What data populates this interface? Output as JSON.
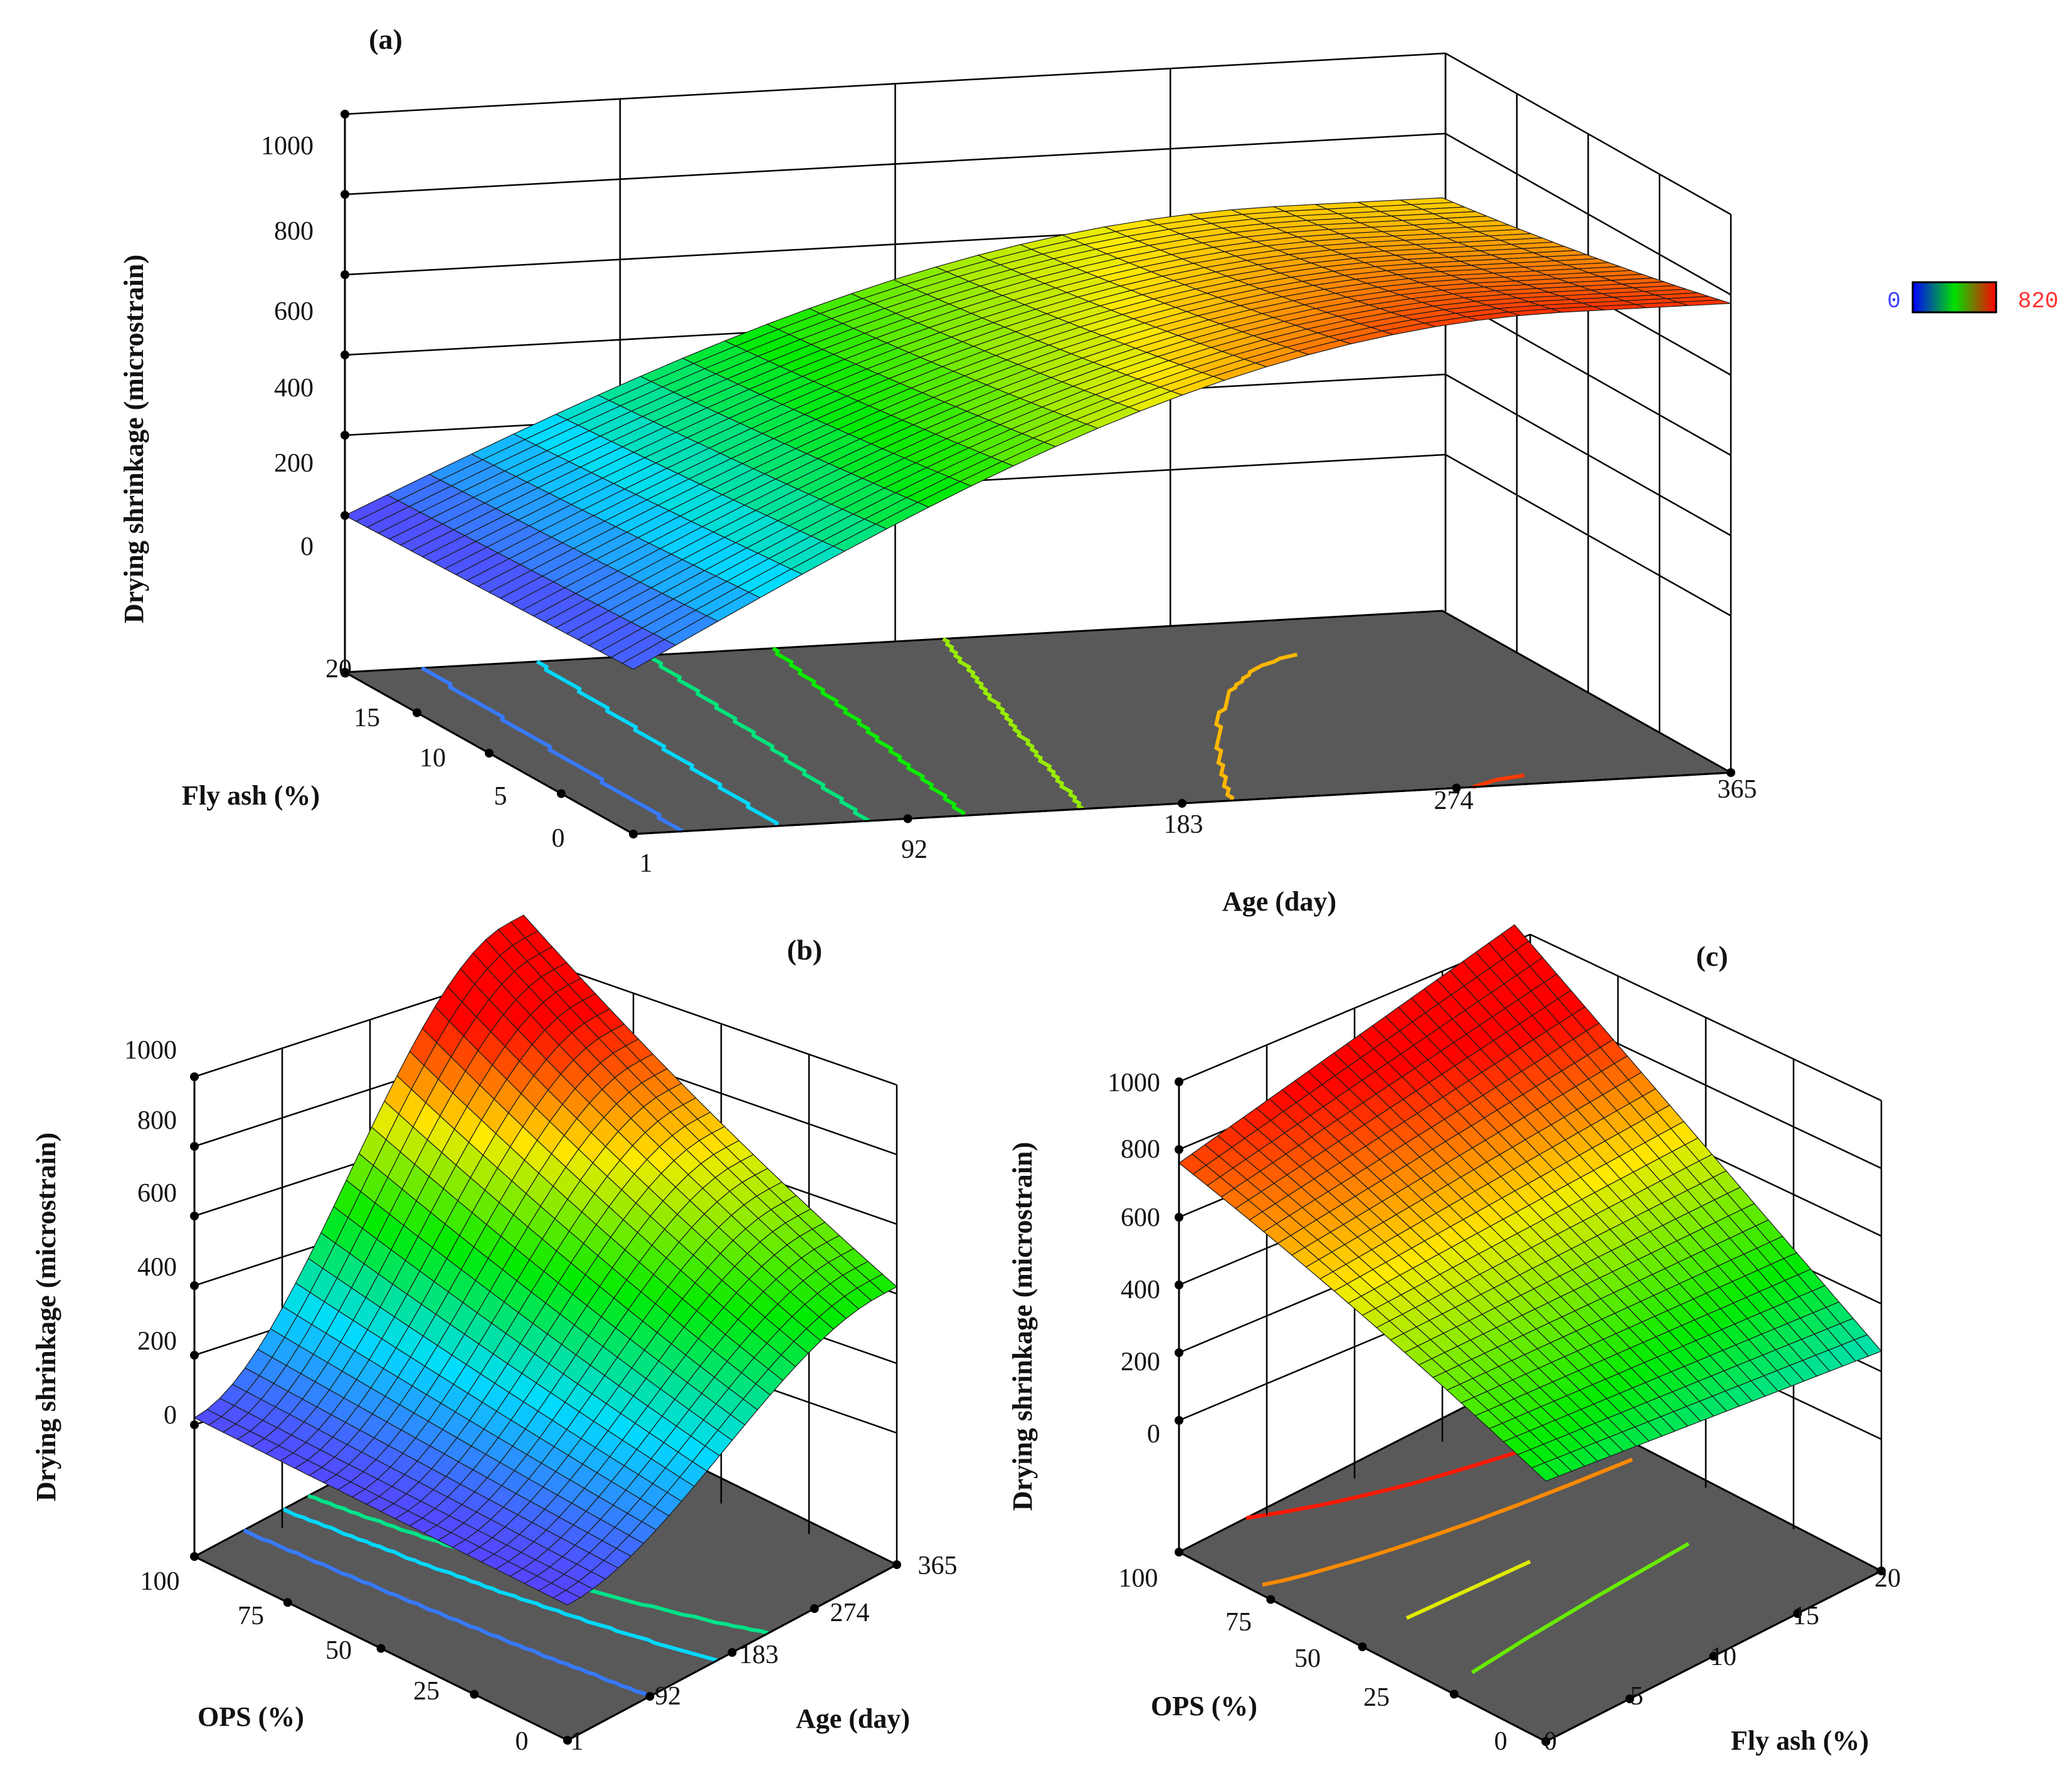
{
  "chart_data": [
    {
      "type": "surface3d",
      "panel": "(a)",
      "zlabel": "Drying shrinkage (microstrain)",
      "xlabel": "Age (day)",
      "ylabel": "Fly ash (%)",
      "zticks": [
        "0",
        "200",
        "400",
        "600",
        "800",
        "1000"
      ],
      "xticks": [
        "1",
        "92",
        "183",
        "274",
        "365"
      ],
      "yticks": [
        "0",
        "5",
        "10",
        "15",
        "20"
      ],
      "zlim": [
        0,
        1000
      ],
      "corner_values": {
        "age_1_fly_0": 20,
        "age_1_fly_20": 0,
        "age_365_fly_0": 800,
        "age_365_fly_20": 620
      },
      "peak": {
        "age": 300,
        "fly_ash": 20,
        "shrinkage": 820
      }
    },
    {
      "type": "surface3d",
      "panel": "(b)",
      "zlabel": "Drying shrinkage (microstrain)",
      "xlabel": "Age (day)",
      "ylabel": "OPS (%)",
      "zticks": [
        "0",
        "200",
        "400",
        "600",
        "800",
        "1000"
      ],
      "xticks": [
        "1",
        "92",
        "183",
        "274",
        "365"
      ],
      "yticks": [
        "0",
        "25",
        "50",
        "75",
        "100"
      ],
      "zlim": [
        0,
        1000
      ],
      "corner_values": {
        "age_1_ops_0": 10,
        "age_1_ops_100": 20,
        "age_365_ops_0": 420,
        "age_365_ops_100": 960
      }
    },
    {
      "type": "surface3d",
      "panel": "(c)",
      "zlabel": "Drying shrinkage (microstrain)",
      "xlabel": "Fly ash (%)",
      "ylabel": "OPS (%)",
      "zticks": [
        "0",
        "200",
        "400",
        "600",
        "800",
        "1000"
      ],
      "xticks": [
        "0",
        "5",
        "10",
        "15",
        "20"
      ],
      "yticks": [
        "0",
        "25",
        "50",
        "75",
        "100"
      ],
      "zlim": [
        0,
        1000
      ],
      "corner_values": {
        "fly_0_ops_0": 380,
        "fly_0_ops_100": 760,
        "fly_20_ops_0": 260,
        "fly_20_ops_100": 960
      }
    }
  ],
  "legend": {
    "min_label": "0",
    "max_label": "820",
    "min_value": 0,
    "max_value": 820
  },
  "colors": {
    "floor": "#595959",
    "min": "#0000ff",
    "mid": "#00e000",
    "max": "#ff0000"
  }
}
